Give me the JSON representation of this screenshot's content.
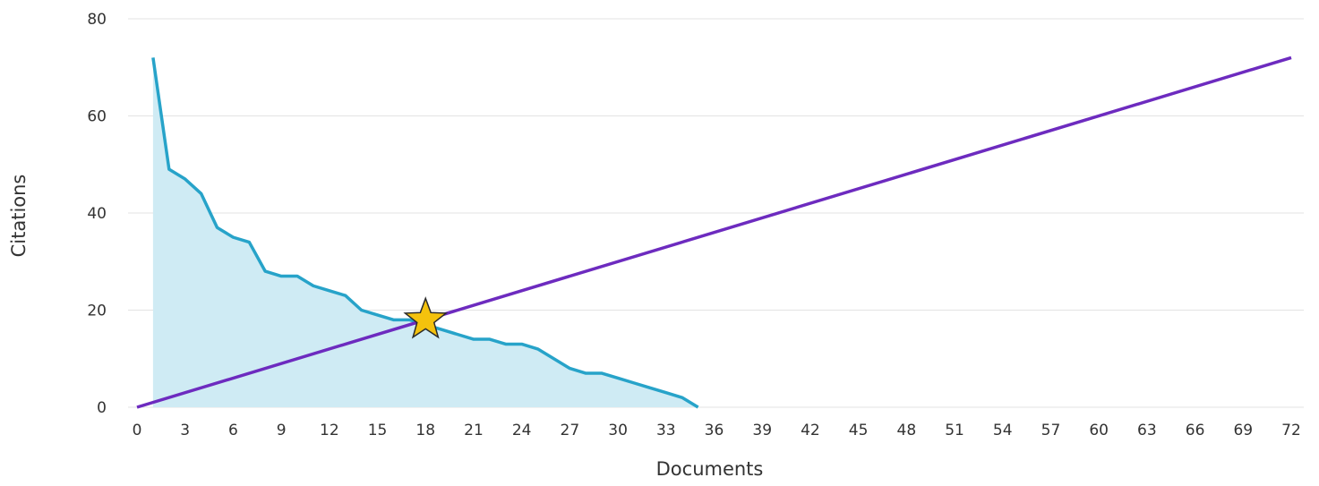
{
  "chart_data": {
    "type": "area",
    "xlabel": "Documents",
    "ylabel": "Citations",
    "xlim": [
      0,
      72
    ],
    "ylim": [
      0,
      80
    ],
    "x_ticks": [
      0,
      3,
      6,
      9,
      12,
      15,
      18,
      21,
      24,
      27,
      30,
      33,
      36,
      39,
      42,
      45,
      48,
      51,
      54,
      57,
      60,
      63,
      66,
      69,
      72
    ],
    "y_ticks": [
      0,
      20,
      40,
      60,
      80
    ],
    "grid": "horizontal",
    "legend": "none",
    "series": [
      {
        "type": "area",
        "color": "#27a3c9",
        "fill": "#cfebf4",
        "x": [
          1,
          2,
          3,
          4,
          5,
          6,
          7,
          8,
          9,
          10,
          11,
          12,
          13,
          14,
          15,
          16,
          17,
          18,
          19,
          20,
          21,
          22,
          23,
          24,
          25,
          26,
          27,
          28,
          29,
          30,
          31,
          32,
          33,
          34,
          35
        ],
        "values": [
          72,
          49,
          47,
          44,
          37,
          35,
          34,
          28,
          27,
          27,
          25,
          24,
          23,
          20,
          19,
          18,
          18,
          17,
          16,
          15,
          14,
          14,
          13,
          13,
          12,
          10,
          8,
          7,
          7,
          6,
          5,
          4,
          3,
          2,
          0
        ]
      },
      {
        "type": "line",
        "color": "#6d2bbf",
        "x": [
          0,
          72
        ],
        "values": [
          0,
          72
        ]
      }
    ],
    "marker": {
      "shape": "star",
      "x": 18,
      "y": 18,
      "color": "#f4c20d"
    }
  }
}
